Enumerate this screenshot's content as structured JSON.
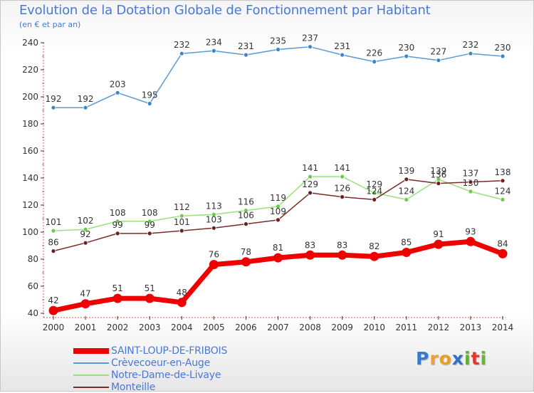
{
  "chart_data": {
    "type": "line",
    "title": "Evolution de la Dotation Globale de Fonctionnement par Habitant",
    "subtitle": "(en € et par an)",
    "xlabel": "",
    "ylabel": "",
    "ylim": [
      40,
      240
    ],
    "yticks": [
      40,
      60,
      80,
      100,
      120,
      140,
      160,
      180,
      200,
      220,
      240
    ],
    "grid": false,
    "legend_position": "bottom-left",
    "categories": [
      "2000",
      "2001",
      "2002",
      "2003",
      "2004",
      "2005",
      "2006",
      "2007",
      "2008",
      "2009",
      "2010",
      "2011",
      "2012",
      "2013",
      "2014"
    ],
    "series": [
      {
        "name": "Crèvecoeur-en-Auge",
        "color": "#5b9bd5",
        "marker": "#3d85c6",
        "values": [
          192,
          192,
          203,
          195,
          232,
          234,
          231,
          235,
          237,
          231,
          226,
          230,
          227,
          232,
          230
        ]
      },
      {
        "name": "Notre-Dame-de-Livaye",
        "color": "#98e080",
        "marker": "#6ccc4a",
        "values": [
          101,
          102,
          108,
          108,
          112,
          113,
          116,
          119,
          141,
          141,
          129,
          124,
          139,
          130,
          124
        ]
      },
      {
        "name": "Monteille",
        "color": "#7b2a2a",
        "marker": "#6b1f1f",
        "values": [
          86,
          92,
          99,
          99,
          101,
          103,
          106,
          109,
          129,
          126,
          124,
          139,
          136,
          137,
          138
        ]
      },
      {
        "name": "SAINT-LOUP-DE-FRIBOIS",
        "color": "#ee0000",
        "marker": "#ee0000",
        "values": [
          42,
          47,
          51,
          51,
          48,
          76,
          78,
          81,
          83,
          83,
          82,
          85,
          91,
          93,
          84
        ]
      }
    ]
  },
  "legend": [
    {
      "name": "SAINT-LOUP-DE-FRIBOIS",
      "color": "#ee0000"
    },
    {
      "name": "Crèvecoeur-en-Auge",
      "color": "#5b9bd5"
    },
    {
      "name": "Notre-Dame-de-Livaye",
      "color": "#98e080"
    },
    {
      "name": "Monteille",
      "color": "#7b2a2a"
    }
  ],
  "logo": {
    "letters": [
      "P",
      "r",
      "o",
      "x",
      "i",
      "t",
      "i"
    ],
    "colors": [
      "#3b79cf",
      "#f0a030",
      "#e8a020",
      "#2f6fc8",
      "#5bb030",
      "#e03b2a",
      "#6cb33a"
    ]
  }
}
